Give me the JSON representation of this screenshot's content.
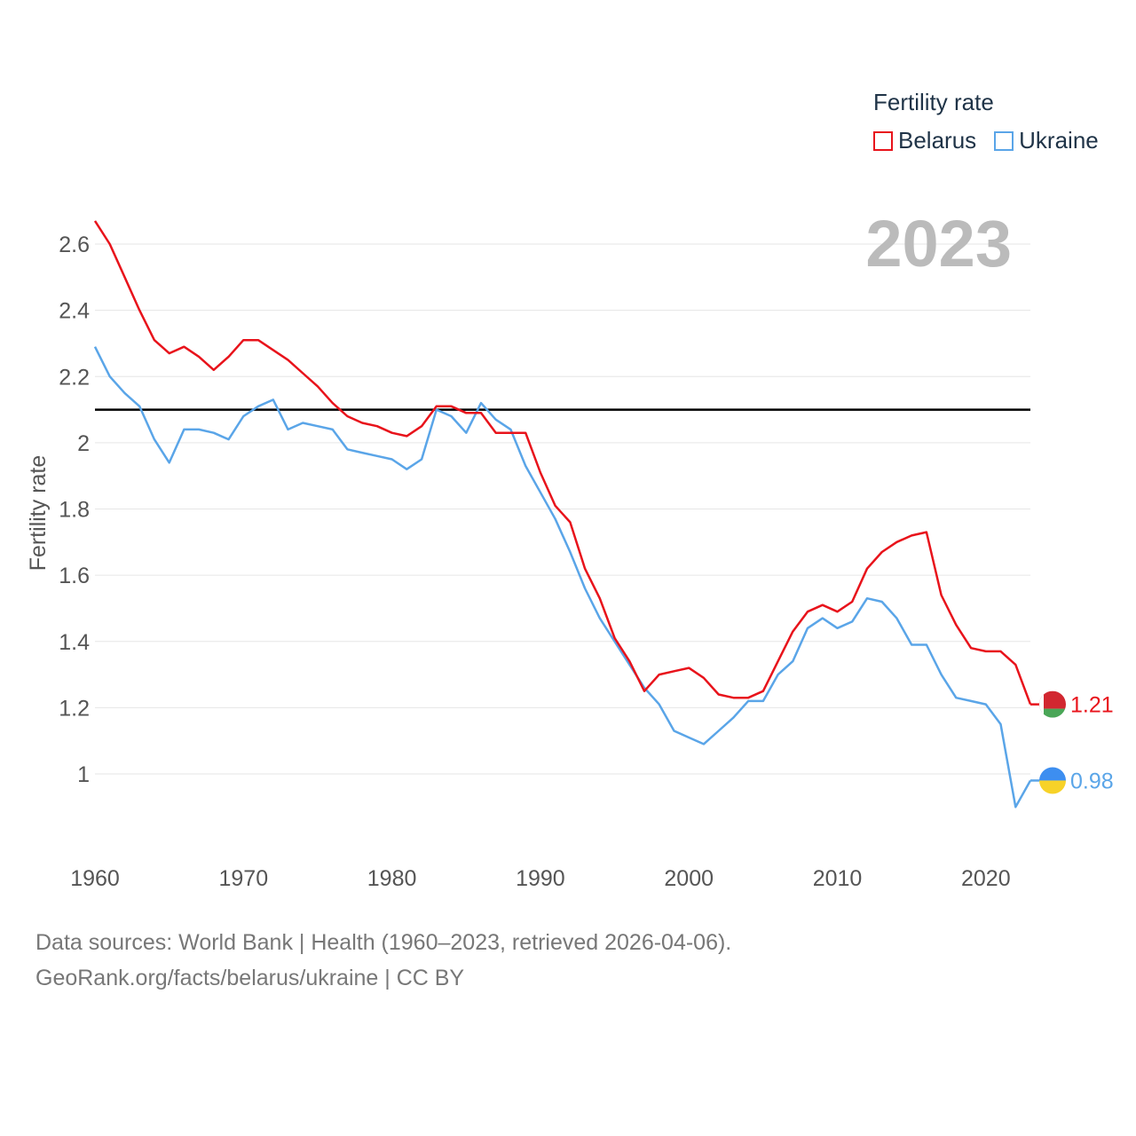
{
  "chart_data": {
    "type": "line",
    "year_label": "2023",
    "ylabel": "Fertility rate",
    "xlim": [
      1960,
      2023
    ],
    "ylim": [
      0.86,
      2.7
    ],
    "xticks": [
      1960,
      1970,
      1980,
      1990,
      2000,
      2010,
      2020
    ],
    "yticks": [
      {
        "value": 1.0,
        "label": "1"
      },
      {
        "value": 1.2,
        "label": "1.2"
      },
      {
        "value": 1.4,
        "label": "1.4"
      },
      {
        "value": 1.6,
        "label": "1.6"
      },
      {
        "value": 1.8,
        "label": "1.8"
      },
      {
        "value": 2.0,
        "label": "2"
      },
      {
        "value": 2.2,
        "label": "2.2"
      },
      {
        "value": 2.4,
        "label": "2.4"
      },
      {
        "value": 2.6,
        "label": "2.6"
      }
    ],
    "reference_line": 2.1,
    "x": [
      1960,
      1961,
      1962,
      1963,
      1964,
      1965,
      1966,
      1967,
      1968,
      1969,
      1970,
      1971,
      1972,
      1973,
      1974,
      1975,
      1976,
      1977,
      1978,
      1979,
      1980,
      1981,
      1982,
      1983,
      1984,
      1985,
      1986,
      1987,
      1988,
      1989,
      1990,
      1991,
      1992,
      1993,
      1994,
      1995,
      1996,
      1997,
      1998,
      1999,
      2000,
      2001,
      2002,
      2003,
      2004,
      2005,
      2006,
      2007,
      2008,
      2009,
      2010,
      2011,
      2012,
      2013,
      2014,
      2015,
      2016,
      2017,
      2018,
      2019,
      2020,
      2021,
      2022,
      2023
    ],
    "series": [
      {
        "name": "Belarus",
        "color": "#e8131b",
        "end_label": "1.21",
        "values": [
          2.67,
          2.6,
          2.5,
          2.4,
          2.31,
          2.27,
          2.29,
          2.26,
          2.22,
          2.26,
          2.31,
          2.31,
          2.28,
          2.25,
          2.21,
          2.17,
          2.12,
          2.08,
          2.06,
          2.05,
          2.03,
          2.02,
          2.05,
          2.11,
          2.11,
          2.09,
          2.09,
          2.03,
          2.03,
          2.03,
          1.91,
          1.81,
          1.76,
          1.62,
          1.53,
          1.41,
          1.34,
          1.25,
          1.3,
          1.31,
          1.32,
          1.29,
          1.24,
          1.23,
          1.23,
          1.25,
          1.34,
          1.43,
          1.49,
          1.51,
          1.49,
          1.52,
          1.62,
          1.67,
          1.7,
          1.72,
          1.73,
          1.54,
          1.45,
          1.38,
          1.37,
          1.37,
          1.33,
          1.21
        ]
      },
      {
        "name": "Ukraine",
        "color": "#5aa5e8",
        "end_label": "0.98",
        "values": [
          2.29,
          2.2,
          2.15,
          2.11,
          2.01,
          1.94,
          2.04,
          2.04,
          2.03,
          2.01,
          2.08,
          2.11,
          2.13,
          2.04,
          2.06,
          2.05,
          2.04,
          1.98,
          1.97,
          1.96,
          1.95,
          1.92,
          1.95,
          2.1,
          2.08,
          2.03,
          2.12,
          2.07,
          2.04,
          1.93,
          1.85,
          1.77,
          1.67,
          1.56,
          1.47,
          1.4,
          1.33,
          1.26,
          1.21,
          1.13,
          1.11,
          1.09,
          1.13,
          1.17,
          1.22,
          1.22,
          1.3,
          1.34,
          1.44,
          1.47,
          1.44,
          1.46,
          1.53,
          1.52,
          1.47,
          1.39,
          1.39,
          1.3,
          1.23,
          1.22,
          1.21,
          1.15,
          0.9,
          0.98
        ]
      }
    ]
  },
  "legend": {
    "title": "Fertility rate",
    "items": [
      {
        "label": "Belarus",
        "color": "#e8131b"
      },
      {
        "label": "Ukraine",
        "color": "#5aa5e8"
      }
    ]
  },
  "source": {
    "line1": "Data sources: World Bank | Health (1960–2023, retrieved 2026-04-06).",
    "line2": "GeoRank.org/facts/belarus/ukraine | CC BY"
  }
}
